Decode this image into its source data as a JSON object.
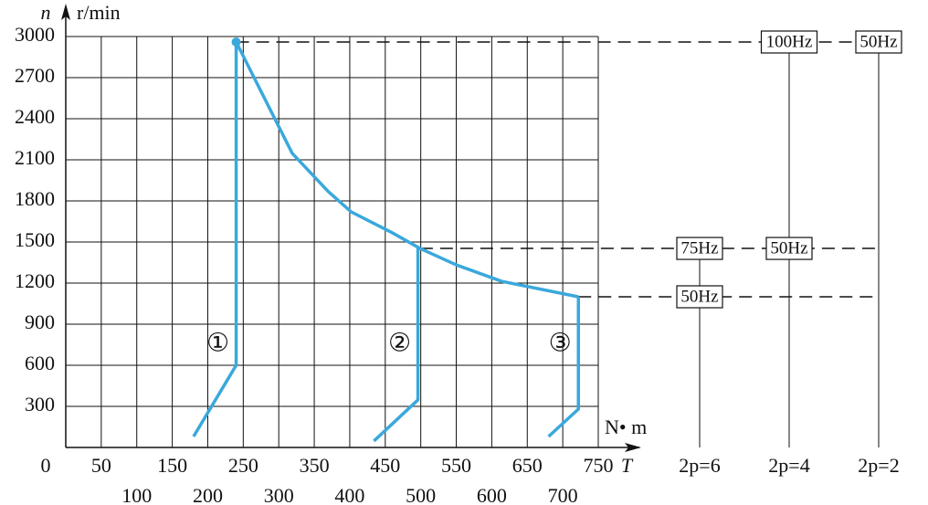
{
  "chart_data": {
    "type": "line",
    "y_label_symbol": "n",
    "y_label_unit": "r/min",
    "x_label_unit": "N• m",
    "x_label_symbol": "T",
    "xlim": [
      0,
      750
    ],
    "ylim": [
      0,
      3000
    ],
    "xticks": [
      0,
      50,
      100,
      150,
      200,
      250,
      300,
      350,
      400,
      450,
      500,
      550,
      600,
      650,
      700,
      750
    ],
    "yticks": [
      300,
      600,
      900,
      1200,
      1500,
      1800,
      2100,
      2400,
      2700,
      3000
    ],
    "grid": true,
    "series": [
      {
        "name": "①",
        "color": "#3aa8dc",
        "x": [
          180,
          240,
          240,
          319,
          370,
          402,
          460,
          499,
          550,
          614,
          722
        ],
        "values": [
          80,
          600,
          2960,
          2147,
          1867,
          1720,
          1567,
          1453,
          1333,
          1213,
          1100
        ]
      },
      {
        "name": "②",
        "color": "#3aa8dc",
        "x": [
          434,
          496,
          496
        ],
        "values": [
          47,
          347,
          1453
        ]
      },
      {
        "name": "③",
        "color": "#3aa8dc",
        "x": [
          680,
          722,
          722
        ],
        "values": [
          80,
          280,
          1100
        ]
      }
    ],
    "speed_lines": [
      {
        "speed": 2960,
        "from_torque": 240
      },
      {
        "speed": 1453,
        "from_torque": 499
      },
      {
        "speed": 1100,
        "from_torque": 722
      }
    ],
    "poles": [
      {
        "label": "2p=6",
        "boxes": [
          {
            "label": "75Hz",
            "speed": 1453
          },
          {
            "label": "50Hz",
            "speed": 1100
          }
        ]
      },
      {
        "label": "2p=4",
        "boxes": [
          {
            "label": "100Hz",
            "speed": 2960
          },
          {
            "label": "50Hz",
            "speed": 1453
          }
        ]
      },
      {
        "label": "2p=2",
        "boxes": [
          {
            "label": "50Hz",
            "speed": 2960
          }
        ]
      }
    ]
  }
}
